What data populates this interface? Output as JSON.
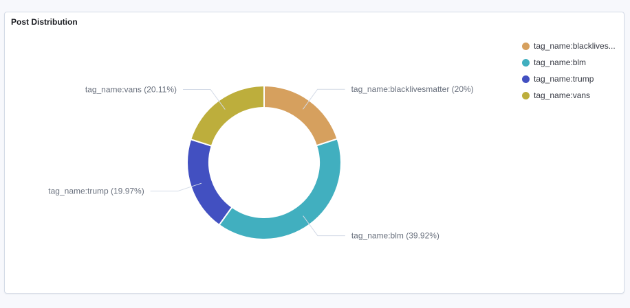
{
  "panel": {
    "title": "Post Distribution"
  },
  "chart_data": {
    "type": "pie",
    "donut": true,
    "categories": [
      "tag_name:blacklivesmatter",
      "tag_name:blm",
      "tag_name:trump",
      "tag_name:vans"
    ],
    "values": [
      20,
      39.92,
      19.97,
      20.11
    ],
    "slice_labels": [
      "tag_name:blacklivesmatter (20%)",
      "tag_name:blm (39.92%)",
      "tag_name:trump (19.97%)",
      "tag_name:vans (20.11%)"
    ],
    "colors": [
      "#d6a05e",
      "#41afbf",
      "#4250c1",
      "#bdae3c"
    ],
    "legend_position": "top-right"
  },
  "legend": {
    "items": [
      {
        "label": "tag_name:blacklives...",
        "color": "#d6a05e"
      },
      {
        "label": "tag_name:blm",
        "color": "#41afbf"
      },
      {
        "label": "tag_name:trump",
        "color": "#4250c1"
      },
      {
        "label": "tag_name:vans",
        "color": "#bdae3c"
      }
    ]
  }
}
